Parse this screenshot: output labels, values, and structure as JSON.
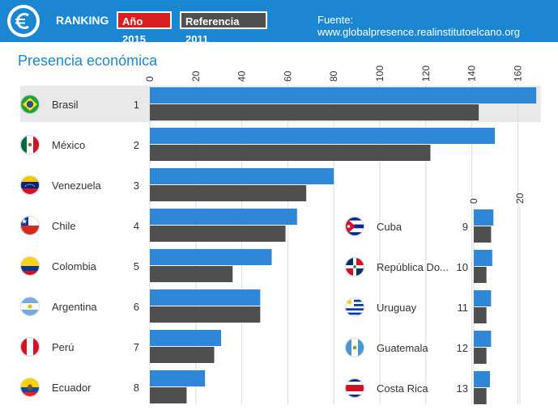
{
  "header": {
    "ranking_label": "RANKING",
    "year_badge": "Año 2015",
    "reference_badge": "Referencia 2011",
    "source": "Fuente: www.globalpresence.realinstitutoelcano.org",
    "logo_icon": "euro-icon",
    "bg_color": "#1b87d2",
    "year_badge_color": "#d7201f",
    "reference_badge_color": "#505050"
  },
  "chart_data": [
    {
      "type": "bar",
      "title": "Presencia económica",
      "orientation": "horizontal",
      "xlim": [
        0,
        170
      ],
      "xticks": [
        0,
        20,
        40,
        60,
        80,
        100,
        120,
        140,
        160
      ],
      "grid": true,
      "highlighted_category": "Brasil",
      "categories": [
        "Brasil",
        "México",
        "Venezuela",
        "Chile",
        "Colombia",
        "Argentina",
        "Perú",
        "Ecuador"
      ],
      "ranks": [
        1,
        2,
        3,
        4,
        5,
        6,
        7,
        8
      ],
      "flag_icons": [
        "brazil-flag-icon",
        "mexico-flag-icon",
        "venezuela-flag-icon",
        "chile-flag-icon",
        "colombia-flag-icon",
        "argentina-flag-icon",
        "peru-flag-icon",
        "ecuador-flag-icon"
      ],
      "series": [
        {
          "name": "Año 2015",
          "color": "#2f87d8",
          "values": [
            168,
            150,
            80,
            64,
            53,
            48,
            31,
            24
          ]
        },
        {
          "name": "Referencia 2011",
          "color": "#4f4f4f",
          "values": [
            143,
            122,
            68,
            59,
            36,
            48,
            28,
            16
          ]
        }
      ]
    },
    {
      "type": "bar",
      "orientation": "horizontal",
      "xlim": [
        0,
        30
      ],
      "xticks": [
        0,
        20
      ],
      "grid": true,
      "categories": [
        "Cuba",
        "República Do...",
        "Uruguay",
        "Guatemala",
        "Costa Rica"
      ],
      "ranks": [
        9,
        10,
        11,
        12,
        13
      ],
      "flag_icons": [
        "cuba-flag-icon",
        "dominican-republic-flag-icon",
        "uruguay-flag-icon",
        "guatemala-flag-icon",
        "costa-rica-flag-icon"
      ],
      "series": [
        {
          "name": "Año 2015",
          "color": "#2f87d8",
          "values": [
            8.5,
            8,
            7.5,
            7.5,
            7
          ]
        },
        {
          "name": "Referencia 2011",
          "color": "#4f4f4f",
          "values": [
            7.5,
            5.5,
            5.5,
            5.5,
            5.5
          ]
        }
      ]
    }
  ]
}
